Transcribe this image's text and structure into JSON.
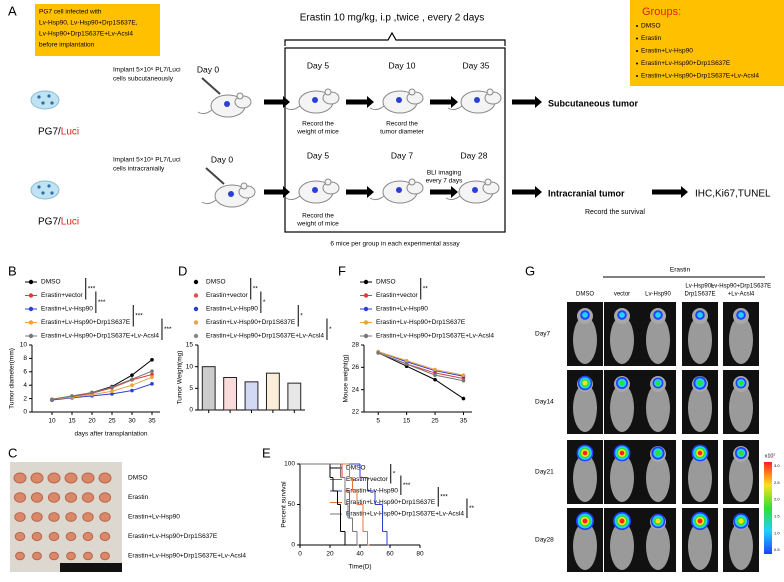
{
  "panel_a": {
    "label": "A",
    "infection_note": [
      "PG7 cell infected with",
      "Lv-Hsp90, Lv-Hsp90+Drp1S637E,",
      "Lv-Hsp90+Drp1S637E+Lv-Acsl4",
      "before implantation"
    ],
    "treatment": "Erastin 10 mg/kg, i.p ,twice , every 2 days",
    "groups_title": "Groups:",
    "groups": [
      "DMSO",
      "Erastin",
      "Erastin+Lv-Hsp90",
      "Erastin+Lv-Hsp90+Drp1S637E",
      "Erastin+Lv-Hsp90+Drp1S637E+Lv-Acsl4"
    ],
    "cell_prefix": "PG7/",
    "cell_suffix": "Luci",
    "subcutaneous": {
      "implant": [
        "Implant 5×10⁶ PL7/Luci",
        "cells subcutaneously"
      ],
      "days": [
        "Day 0",
        "Day 5",
        "Day 10",
        "Day 35"
      ],
      "notes": [
        [
          "Record the",
          "weight of mice"
        ],
        [
          "Record the",
          "tumor diameter"
        ]
      ],
      "outcome": "Subcutaneous tumor"
    },
    "intracranial": {
      "implant": [
        "Implant 5×10⁵ PL7/Luci",
        "cells intracranially"
      ],
      "days": [
        "Day 0",
        "Day 5",
        "Day 7",
        "Day 28"
      ],
      "notes": [
        [
          "Record the",
          "weight of mice"
        ],
        [
          "BLI imaging",
          "every 7 days"
        ]
      ],
      "outcome": "Intracranial tumor",
      "follow_up": "Record the survival",
      "assays": "IHC,Ki67,TUNEL"
    },
    "footnote": "6 mice per group in each experimental assay"
  },
  "chart_data": [
    {
      "label": "B",
      "type": "line",
      "x": [
        10,
        15,
        20,
        25,
        30,
        35
      ],
      "xlim": [
        5,
        37
      ],
      "xticks": [
        10,
        15,
        20,
        25,
        30,
        35
      ],
      "ylim": [
        0,
        10
      ],
      "yticks": [
        0,
        2,
        4,
        6,
        8,
        10
      ],
      "xlabel": "days after transplantation",
      "ylabel": "Tumor diameter(mm)",
      "series": [
        {
          "name": "DMSO",
          "color": "#000000",
          "values": [
            1.8,
            2.3,
            2.9,
            3.8,
            5.5,
            7.8
          ]
        },
        {
          "name": "Erastin+vector",
          "color": "#e03a3a",
          "values": [
            1.9,
            2.3,
            2.8,
            3.6,
            4.8,
            5.6
          ]
        },
        {
          "name": "Erastin+Lv-Hsp90",
          "color": "#2b3fd6",
          "values": [
            1.8,
            2.1,
            2.4,
            2.7,
            3.2,
            4.2
          ]
        },
        {
          "name": "Erastin+Lv-Hsp90+Drp1S637E",
          "color": "#e8a33d",
          "values": [
            1.9,
            2.2,
            2.6,
            3.1,
            4.0,
            5.2
          ]
        },
        {
          "name": "Erastin+Lv-Hsp90+Drp1S637E+Lv-Acsl4",
          "color": "#777777",
          "values": [
            1.9,
            2.4,
            2.9,
            3.7,
            4.9,
            6.1
          ]
        }
      ],
      "significance": [
        "***",
        "***",
        "***",
        "***"
      ]
    },
    {
      "label": "D",
      "type": "bar",
      "categories": [
        "DMSO",
        "Erastin+vector",
        "Erastin+Lv-Hsp90",
        "Erastin+Lv-Hsp90+Drp1S637E",
        "Erastin+Lv-Hsp90+Drp1S637E+Lv-Acsl4"
      ],
      "values": [
        10,
        7.5,
        6.5,
        8.5,
        6.2
      ],
      "colors": [
        "#000000",
        "#e84c4c",
        "#1f3fc9",
        "#e9a545",
        "#888888"
      ],
      "ylim": [
        0,
        15
      ],
      "yticks": [
        0,
        5,
        10,
        15
      ],
      "ylabel": "Tumor Weight(mg)",
      "significance": [
        "**",
        "*",
        "*",
        "*"
      ]
    },
    {
      "label": "F",
      "type": "line",
      "x": [
        5,
        15,
        25,
        35
      ],
      "xlim": [
        0,
        38
      ],
      "xticks": [
        5,
        15,
        25,
        35
      ],
      "ylim": [
        22,
        28
      ],
      "yticks": [
        22,
        24,
        26,
        28
      ],
      "ylabel": "Mouse weight(g)",
      "series": [
        {
          "name": "DMSO",
          "color": "#000000",
          "values": [
            27.3,
            26.1,
            24.9,
            23.2
          ]
        },
        {
          "name": "Erastin+vector",
          "color": "#e03a3a",
          "values": [
            27.3,
            26.3,
            25.5,
            25.0
          ]
        },
        {
          "name": "Erastin+Lv-Hsp90",
          "color": "#2b3fd6",
          "values": [
            27.4,
            26.5,
            25.7,
            25.2
          ]
        },
        {
          "name": "Erastin+Lv-Hsp90+Drp1S637E",
          "color": "#e8a33d",
          "values": [
            27.4,
            26.6,
            25.8,
            25.3
          ]
        },
        {
          "name": "Erastin+Lv-Hsp90+Drp1S637E+Lv-Acsl4",
          "color": "#777777",
          "values": [
            27.3,
            26.3,
            25.3,
            24.8
          ]
        }
      ],
      "significance": [
        "**"
      ]
    },
    {
      "label": "E",
      "type": "survival",
      "xlim": [
        0,
        80
      ],
      "xticks": [
        0,
        20,
        40,
        60,
        80
      ],
      "ylim": [
        0,
        100
      ],
      "yticks": [
        0,
        50,
        100
      ],
      "xlabel": "Time(D)",
      "ylabel": "Percent survival",
      "series": [
        {
          "name": "DMSO",
          "color": "#000000",
          "x": [
            0,
            20,
            22,
            25,
            27,
            30
          ],
          "values": [
            100,
            83.3,
            66.7,
            50,
            16.7,
            0
          ]
        },
        {
          "name": "Erastin+vector",
          "color": "#e03a3a",
          "x": [
            0,
            28,
            30,
            33,
            35,
            38
          ],
          "values": [
            100,
            83.3,
            66.7,
            33.3,
            16.7,
            0
          ]
        },
        {
          "name": "Erastin+Lv-Hsp90",
          "color": "#2b3fd6",
          "x": [
            0,
            40,
            45,
            50,
            55,
            58
          ],
          "values": [
            100,
            83.3,
            66.7,
            50,
            16.7,
            0
          ]
        },
        {
          "name": "Erastin+Lv-Hsp90+Drp1S637E",
          "color": "#e8743d",
          "x": [
            0,
            33,
            35,
            38,
            42,
            45
          ],
          "values": [
            100,
            83.3,
            66.7,
            50,
            16.7,
            0
          ]
        },
        {
          "name": "Erastin+Lv-Hsp90+Drp1S637E+Lv-Acsl4",
          "color": "#777777",
          "x": [
            0,
            27,
            30,
            32,
            35,
            38
          ],
          "values": [
            100,
            83.3,
            50,
            33.3,
            16.7,
            0
          ]
        }
      ],
      "significance": [
        "*",
        "***",
        "***",
        "**"
      ]
    }
  ],
  "panel_c": {
    "label": "C",
    "rows": [
      "DMSO",
      "Erastin",
      "Erastin+Lv-Hsp90",
      "Erastin+Lv-Hsp90+Drp1S637E",
      "Erastin+Lv-Hsp90+Drp1S637E+Lv-Acsl4"
    ]
  },
  "panel_g": {
    "label": "G",
    "group": "Erastin",
    "columns": [
      [
        "DMSO"
      ],
      [
        "vector"
      ],
      [
        "Lv-Hsp90"
      ],
      [
        "Lv-Hsp90+",
        "Drp1S637E"
      ],
      [
        "Lv-Hsp90+Drp1S637E",
        "+Lv-Acsl4"
      ]
    ],
    "rows": [
      "Day7",
      "Day14",
      "Day21",
      "Day28"
    ],
    "colorbar_unit": "x10⁷",
    "colorbar_ticks": [
      "3.0",
      "2.5",
      "2.0",
      "1.5",
      "1.0",
      "0.5"
    ]
  }
}
